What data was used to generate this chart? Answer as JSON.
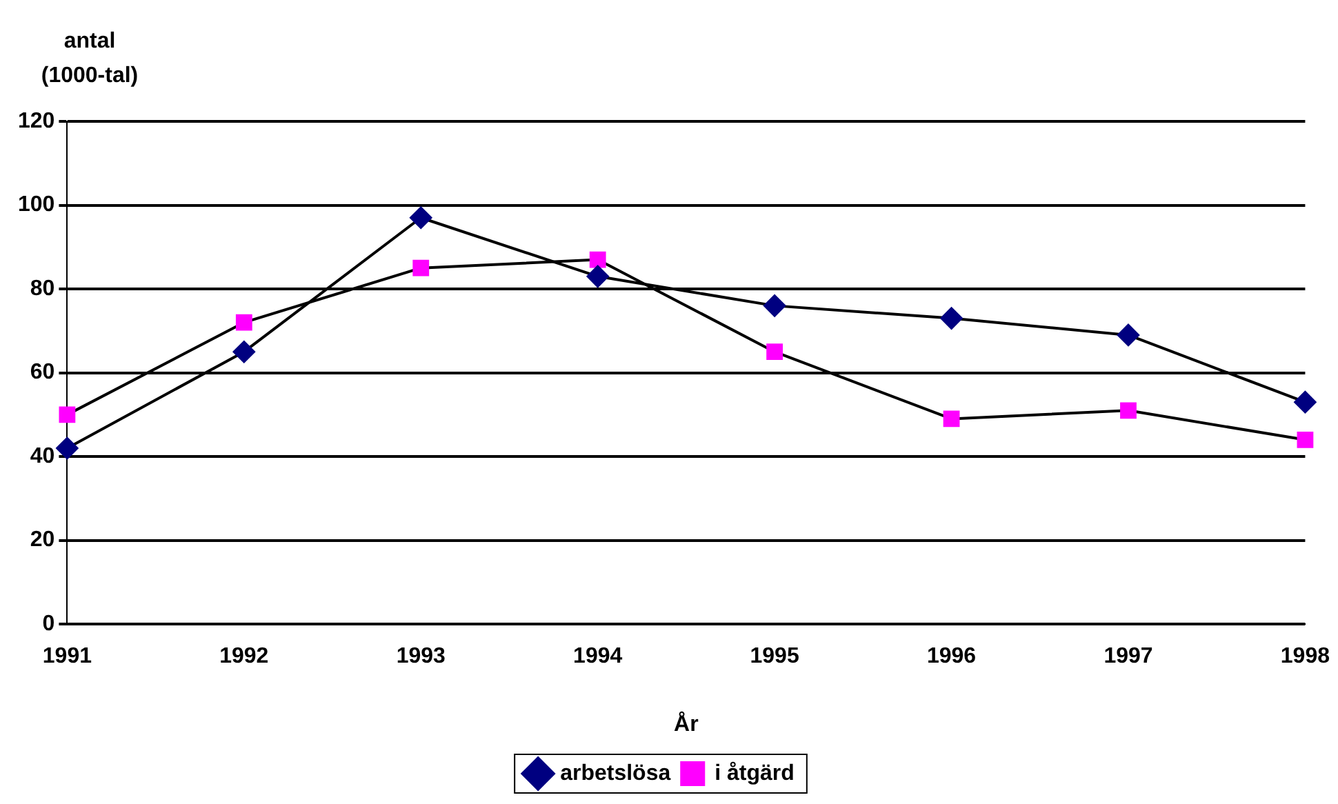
{
  "chart_data": {
    "type": "line",
    "xlabel": "År",
    "ylabel": "antal (1000-tal)",
    "categories": [
      "1991",
      "1992",
      "1993",
      "1994",
      "1995",
      "1996",
      "1997",
      "1998"
    ],
    "series": [
      {
        "name": "arbetslösa",
        "color": "#000080",
        "marker": "diamond",
        "values": [
          42,
          65,
          97,
          83,
          76,
          73,
          69,
          53
        ]
      },
      {
        "name": "i åtgärd",
        "color": "#ff00ff",
        "marker": "square",
        "values": [
          50,
          72,
          85,
          87,
          65,
          49,
          51,
          44
        ]
      }
    ],
    "ylim": [
      0,
      120
    ],
    "yticks": [
      0,
      20,
      40,
      60,
      80,
      100,
      120
    ],
    "grid": "y",
    "legend": "bottom",
    "line_style": "solid"
  }
}
